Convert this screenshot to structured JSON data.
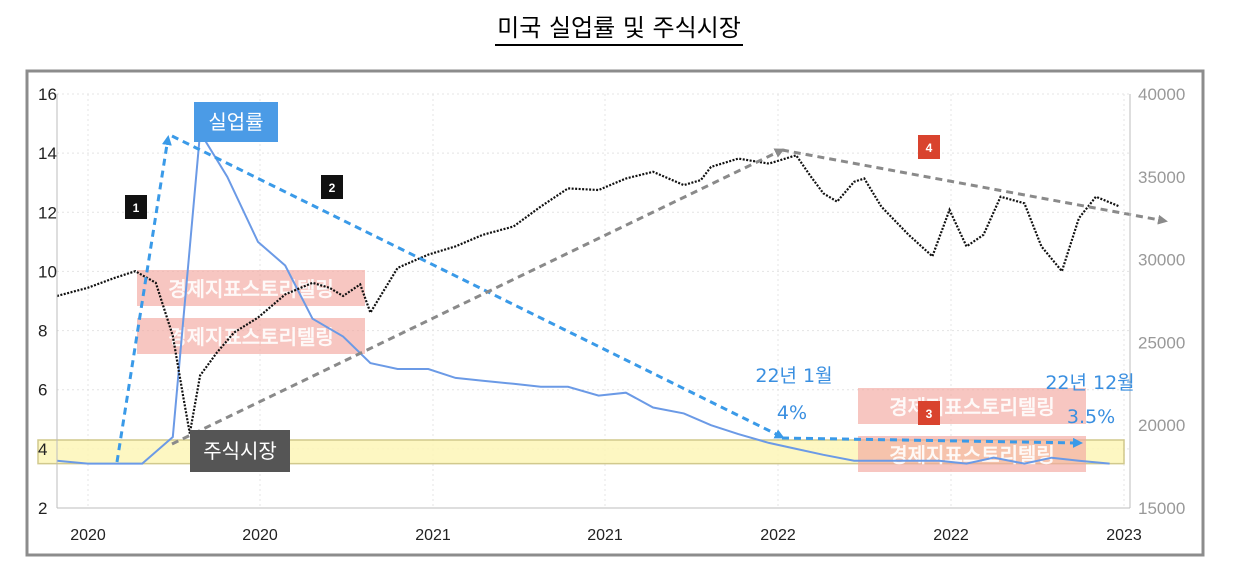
{
  "title": "미국 실업률 및 주식시장",
  "colors": {
    "unemployment": "#6b9ae6",
    "stock": "#111111",
    "blue_arrow": "#3a9ae8",
    "gray_arrow": "#8a8a8a",
    "highlight": "#fdf6b8",
    "unemp_label_bg": "#4b9be6",
    "stock_label_bg": "#555555",
    "badge_dark": "#111111",
    "badge_red": "#d9432e"
  },
  "labels": {
    "unemployment": "실업률",
    "stock": "주식시장",
    "watermark": "경제지표스토리텔링",
    "badge1": "1",
    "badge2": "2",
    "badge3": "3",
    "badge4": "4",
    "jan22": "22년 1월",
    "jan22_value": "4%",
    "dec22": "22년 12월",
    "dec22_value": "3.5%"
  },
  "chart_data": {
    "type": "line",
    "title": "미국 실업률 및 주식시장",
    "x_tick_labels": [
      "2020",
      "2020",
      "2021",
      "2021",
      "2022",
      "2022",
      "2023"
    ],
    "x_range": [
      2019.83,
      2022.98
    ],
    "y_left": {
      "ticks": [
        "16",
        "14",
        "12",
        "10",
        "8",
        "6",
        "4",
        "2"
      ],
      "ylim": [
        2,
        16
      ]
    },
    "y_right": {
      "ticks": [
        "40000",
        "35000",
        "30000",
        "25000",
        "20000",
        "15000"
      ],
      "ylim": [
        15000,
        40000
      ]
    },
    "grid": true,
    "series": [
      {
        "axis": "left",
        "x": [
          2019.83,
          2019.92,
          2020.0,
          2020.08,
          2020.17,
          2020.25,
          2020.33,
          2020.42,
          2020.5,
          2020.58,
          2020.67,
          2020.75,
          2020.83,
          2020.92,
          2021.0,
          2021.08,
          2021.17,
          2021.25,
          2021.33,
          2021.42,
          2021.5,
          2021.58,
          2021.67,
          2021.75,
          2021.83,
          2021.92,
          2022.0,
          2022.08,
          2022.17,
          2022.25,
          2022.33,
          2022.42,
          2022.5,
          2022.58,
          2022.67,
          2022.75,
          2022.83,
          2022.92
        ],
        "y": [
          3.6,
          3.5,
          3.5,
          3.5,
          4.4,
          14.7,
          13.2,
          11.0,
          10.2,
          8.4,
          7.8,
          6.9,
          6.7,
          6.7,
          6.4,
          6.3,
          6.2,
          6.1,
          6.1,
          5.8,
          5.9,
          5.4,
          5.2,
          4.8,
          4.5,
          4.2,
          4.0,
          3.8,
          3.6,
          3.6,
          3.6,
          3.6,
          3.5,
          3.7,
          3.5,
          3.7,
          3.6,
          3.5
        ]
      },
      {
        "axis": "right",
        "x": [
          2019.83,
          2019.92,
          2020.0,
          2020.06,
          2020.12,
          2020.17,
          2020.2,
          2020.22,
          2020.25,
          2020.3,
          2020.35,
          2020.42,
          2020.5,
          2020.58,
          2020.63,
          2020.67,
          2020.72,
          2020.75,
          2020.83,
          2020.92,
          2021.0,
          2021.08,
          2021.17,
          2021.25,
          2021.33,
          2021.42,
          2021.5,
          2021.58,
          2021.67,
          2021.72,
          2021.75,
          2021.83,
          2021.92,
          2022.0,
          2022.04,
          2022.08,
          2022.12,
          2022.17,
          2022.2,
          2022.25,
          2022.33,
          2022.4,
          2022.45,
          2022.5,
          2022.55,
          2022.6,
          2022.67,
          2022.72,
          2022.78,
          2022.83,
          2022.88,
          2022.95
        ],
        "y": [
          27800,
          28300,
          28900,
          29300,
          28600,
          25400,
          21800,
          19500,
          23000,
          24400,
          25600,
          26500,
          27900,
          28600,
          28300,
          27800,
          28500,
          26800,
          29500,
          30300,
          30800,
          31500,
          32000,
          33200,
          34300,
          34200,
          34900,
          35300,
          34500,
          34800,
          35600,
          36100,
          35800,
          36300,
          35100,
          34000,
          33500,
          34700,
          34900,
          33200,
          31500,
          30200,
          33000,
          30800,
          31500,
          33800,
          33400,
          30800,
          29300,
          32500,
          33800,
          33200
        ]
      }
    ],
    "annotations": [
      "22년 1월",
      "4%",
      "22년 12월",
      "3.5%"
    ]
  }
}
